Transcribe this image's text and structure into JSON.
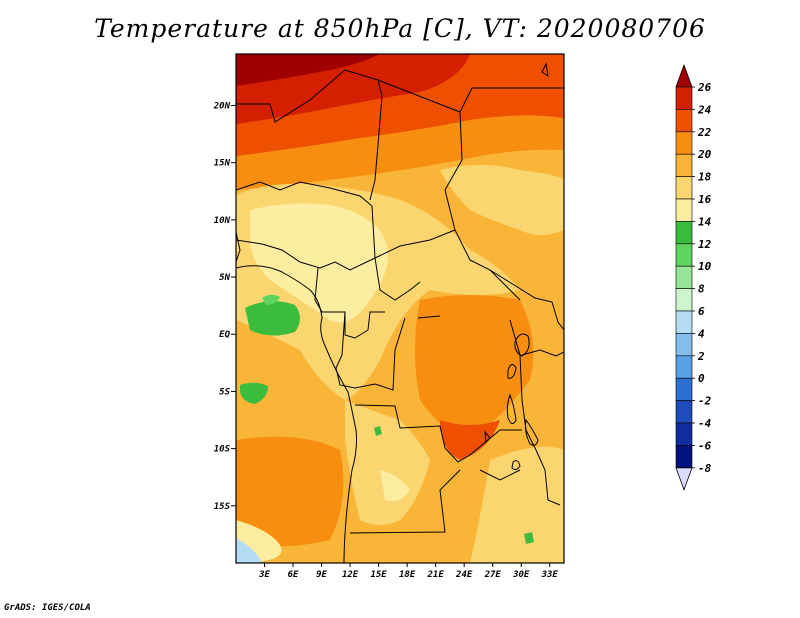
{
  "title": "Temperature at 850hPa [C], VT: 2020080706",
  "credit": "GrADS: IGES/COLA",
  "map": {
    "lat_labels": [
      "20N",
      "15N",
      "10N",
      "5N",
      "EQ",
      "5S",
      "10S",
      "15S"
    ],
    "lat_values": [
      20,
      15,
      10,
      5,
      0,
      -5,
      -10,
      -15
    ],
    "lon_labels": [
      "3E",
      "6E",
      "9E",
      "12E",
      "15E",
      "18E",
      "21E",
      "24E",
      "27E",
      "30E",
      "33E"
    ],
    "lon_values": [
      3,
      6,
      9,
      12,
      15,
      18,
      21,
      24,
      27,
      30,
      33
    ],
    "lat_range": [
      -20,
      24.5
    ],
    "lon_range": [
      0,
      34.5
    ]
  },
  "colorbar": {
    "labels": [
      "26",
      "24",
      "22",
      "20",
      "18",
      "16",
      "14",
      "12",
      "10",
      "8",
      "6",
      "4",
      "2",
      "0",
      "-2",
      "-4",
      "-6",
      "-8"
    ],
    "colors": [
      "#a00000",
      "#d42000",
      "#ee5000",
      "#f78e10",
      "#f9b538",
      "#fbd670",
      "#fdeda0",
      "#3cbc3c",
      "#5ed35e",
      "#96e696",
      "#cff5cf",
      "#b4dcf5",
      "#82beee",
      "#5aa0e6",
      "#2d6ed2",
      "#1e4bbe",
      "#0f2da0",
      "#00127d",
      "#000f5a"
    ]
  }
}
